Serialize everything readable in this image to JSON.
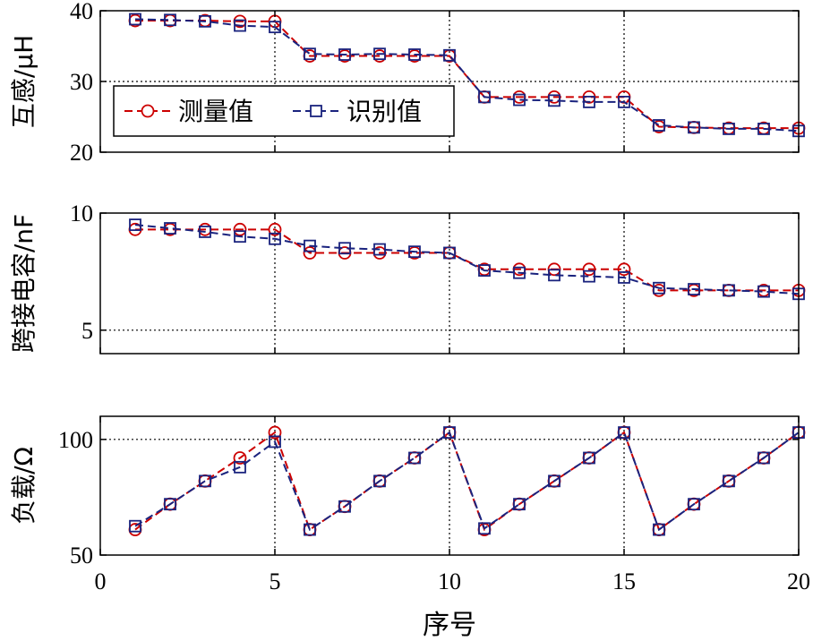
{
  "chart_data": [
    {
      "type": "line",
      "id": "top",
      "ylabel": "互感/μH",
      "ylim": [
        20,
        40
      ],
      "yticks": [
        20,
        30,
        40
      ],
      "xlim": [
        0,
        20
      ],
      "grid_y": [
        30
      ],
      "x": [
        1,
        2,
        3,
        4,
        5,
        6,
        7,
        8,
        9,
        10,
        11,
        12,
        13,
        14,
        15,
        16,
        17,
        18,
        19,
        20
      ],
      "series": [
        {
          "name": "测量值",
          "color": "#cc0000",
          "marker": "circle",
          "values": [
            38.6,
            38.6,
            38.6,
            38.5,
            38.5,
            33.6,
            33.6,
            33.6,
            33.6,
            33.6,
            27.8,
            27.8,
            27.8,
            27.8,
            27.8,
            23.6,
            23.5,
            23.4,
            23.4,
            23.4
          ]
        },
        {
          "name": "识别值",
          "color": "#1a237e",
          "marker": "square",
          "values": [
            38.8,
            38.7,
            38.5,
            37.9,
            37.7,
            33.9,
            33.8,
            33.9,
            33.8,
            33.7,
            27.8,
            27.4,
            27.3,
            27.1,
            27.1,
            23.8,
            23.5,
            23.3,
            23.3,
            23.0
          ]
        }
      ],
      "legend": {
        "position": "lower-left",
        "entries": [
          "测量值",
          "识别值"
        ]
      }
    },
    {
      "type": "line",
      "id": "middle",
      "ylabel": "跨接电容/nF",
      "ylim": [
        4,
        10
      ],
      "yticks": [
        5,
        10
      ],
      "xlim": [
        0,
        20
      ],
      "grid_y": [
        5
      ],
      "x": [
        1,
        2,
        3,
        4,
        5,
        6,
        7,
        8,
        9,
        10,
        11,
        12,
        13,
        14,
        15,
        16,
        17,
        18,
        19,
        20
      ],
      "series": [
        {
          "name": "测量值",
          "color": "#cc0000",
          "marker": "circle",
          "values": [
            9.3,
            9.3,
            9.3,
            9.3,
            9.3,
            8.3,
            8.3,
            8.3,
            8.3,
            8.3,
            7.6,
            7.6,
            7.6,
            7.6,
            7.6,
            6.7,
            6.7,
            6.7,
            6.7,
            6.7
          ]
        },
        {
          "name": "识别值",
          "color": "#1a237e",
          "marker": "square",
          "values": [
            9.5,
            9.35,
            9.2,
            9.0,
            8.9,
            8.6,
            8.5,
            8.45,
            8.35,
            8.3,
            7.55,
            7.45,
            7.35,
            7.3,
            7.25,
            6.8,
            6.75,
            6.7,
            6.65,
            6.55
          ]
        }
      ]
    },
    {
      "type": "line",
      "id": "bottom",
      "ylabel": "负载/Ω",
      "ylim": [
        50,
        110
      ],
      "yticks": [
        50,
        100
      ],
      "xlim": [
        0,
        20
      ],
      "xticks": [
        0,
        5,
        10,
        15,
        20
      ],
      "xlabel": "序号",
      "grid_y": [
        100
      ],
      "x": [
        1,
        2,
        3,
        4,
        5,
        6,
        7,
        8,
        9,
        10,
        11,
        12,
        13,
        14,
        15,
        16,
        17,
        18,
        19,
        20
      ],
      "series": [
        {
          "name": "测量值",
          "color": "#cc0000",
          "marker": "circle",
          "values": [
            61,
            72,
            82,
            92,
            103,
            61,
            71,
            82,
            92,
            103,
            61,
            72,
            82,
            92,
            103,
            61,
            72,
            82,
            92,
            103
          ]
        },
        {
          "name": "识别值",
          "color": "#1a237e",
          "marker": "square",
          "values": [
            62.5,
            72,
            82,
            88,
            99,
            61,
            71,
            82,
            92,
            103,
            61.5,
            72,
            82,
            92,
            103,
            61,
            72,
            82,
            92,
            103
          ]
        }
      ]
    }
  ]
}
